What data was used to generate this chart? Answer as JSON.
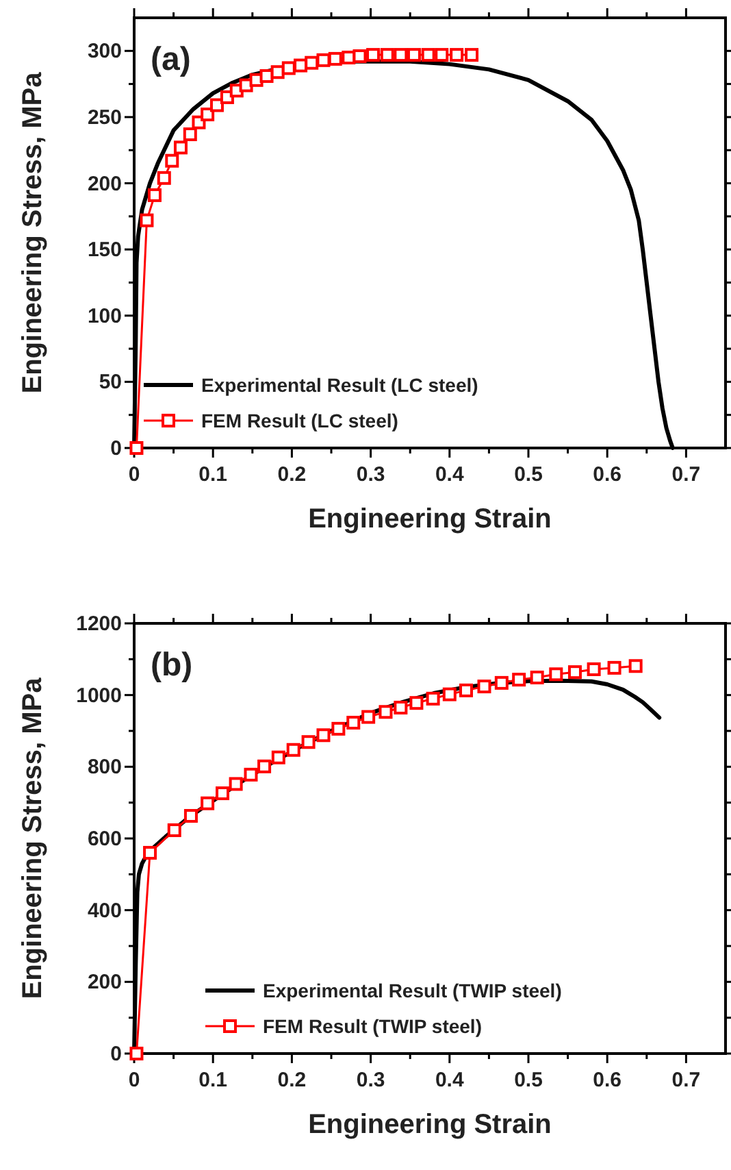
{
  "chart_data": [
    {
      "type": "line",
      "xlabel": "Engineering Strain",
      "ylabel": "Engineering Stress, MPa",
      "annotations": [
        "(a)"
      ],
      "legend": "bottom left",
      "xlim": [
        0,
        0.75
      ],
      "ylim": [
        0,
        325
      ],
      "xticks": [
        0,
        {
          "value": 0.05,
          "label": null
        },
        0.1,
        {
          "value": 0.15,
          "label": null
        },
        0.2,
        {
          "value": 0.25,
          "label": null
        },
        0.3,
        {
          "value": 0.35,
          "label": null
        },
        0.4,
        {
          "value": 0.45,
          "label": null
        },
        0.5,
        {
          "value": 0.55,
          "label": null
        },
        0.6,
        {
          "value": 0.65,
          "label": null
        },
        0.7
      ],
      "yticks": [
        0,
        {
          "value": 25,
          "label": null
        },
        50,
        {
          "value": 75,
          "label": null
        },
        100,
        {
          "value": 125,
          "label": null
        },
        150,
        {
          "value": 175,
          "label": null
        },
        200,
        {
          "value": 225,
          "label": null
        },
        250,
        {
          "value": 275,
          "label": null
        },
        300
      ],
      "series": [
        {
          "name": "Experimental Result (LC steel)",
          "color": "#000000",
          "marker": "none",
          "x": [
            0,
            0.002,
            0.003,
            0.005,
            0.01,
            0.02,
            0.03,
            0.05,
            0.075,
            0.1,
            0.125,
            0.15,
            0.2,
            0.25,
            0.3,
            0.35,
            0.4,
            0.45,
            0.5,
            0.55,
            0.58,
            0.6,
            0.62,
            0.63,
            0.64,
            0.645,
            0.65,
            0.655,
            0.66,
            0.665,
            0.67,
            0.675,
            0.68,
            0.683
          ],
          "values": [
            0,
            80,
            140,
            160,
            180,
            200,
            215,
            240,
            256,
            268,
            276,
            282,
            289,
            292,
            292,
            292,
            290,
            286,
            278,
            262,
            248,
            232,
            210,
            195,
            172,
            150,
            125,
            100,
            75,
            50,
            30,
            15,
            5,
            0
          ]
        },
        {
          "name": "FEM Result (LC steel)",
          "color": "#ff0000",
          "marker": "square",
          "x": [
            0.003,
            0.016,
            0.026,
            0.038,
            0.048,
            0.059,
            0.071,
            0.082,
            0.093,
            0.105,
            0.118,
            0.13,
            0.142,
            0.155,
            0.168,
            0.182,
            0.196,
            0.211,
            0.225,
            0.24,
            0.255,
            0.272,
            0.286,
            0.303,
            0.321,
            0.338,
            0.355,
            0.373,
            0.39,
            0.409,
            0.428
          ],
          "values": [
            0,
            172,
            191,
            204,
            217,
            227,
            237,
            246,
            252,
            259,
            265,
            270,
            274,
            278,
            281,
            284,
            287,
            289,
            291,
            293,
            294,
            295,
            296,
            297,
            297,
            297,
            297,
            297,
            297,
            297,
            297
          ]
        }
      ]
    },
    {
      "type": "line",
      "xlabel": "Engineering Strain",
      "ylabel": "Engineering Stress, MPa",
      "annotations": [
        "(b)"
      ],
      "legend": "bottom",
      "xlim": [
        0,
        0.75
      ],
      "ylim": [
        0,
        1200
      ],
      "xticks": [
        0,
        {
          "value": 0.05,
          "label": null
        },
        0.1,
        {
          "value": 0.15,
          "label": null
        },
        0.2,
        {
          "value": 0.25,
          "label": null
        },
        0.3,
        {
          "value": 0.35,
          "label": null
        },
        0.4,
        {
          "value": 0.45,
          "label": null
        },
        0.5,
        {
          "value": 0.55,
          "label": null
        },
        0.6,
        {
          "value": 0.65,
          "label": null
        },
        0.7
      ],
      "yticks": [
        0,
        {
          "value": 100,
          "label": null
        },
        200,
        {
          "value": 300,
          "label": null
        },
        400,
        {
          "value": 500,
          "label": null
        },
        600,
        {
          "value": 700,
          "label": null
        },
        800,
        {
          "value": 900,
          "label": null
        },
        1000,
        {
          "value": 1100,
          "label": null
        },
        1200
      ],
      "series": [
        {
          "name": "Experimental Result (TWIP steel)",
          "color": "#000000",
          "marker": "none",
          "x": [
            0,
            0.002,
            0.004,
            0.006,
            0.01,
            0.015,
            0.025,
            0.04,
            0.07,
            0.1,
            0.13,
            0.17,
            0.21,
            0.25,
            0.3,
            0.34,
            0.38,
            0.42,
            0.46,
            0.5,
            0.54,
            0.58,
            0.6,
            0.62,
            0.635,
            0.645,
            0.655,
            0.666
          ],
          "values": [
            0,
            250,
            450,
            500,
            530,
            550,
            575,
            605,
            660,
            705,
            750,
            805,
            855,
            900,
            950,
            980,
            1005,
            1022,
            1033,
            1039,
            1040,
            1038,
            1030,
            1015,
            995,
            980,
            960,
            937
          ]
        },
        {
          "name": "FEM Result (TWIP steel)",
          "color": "#ff0000",
          "marker": "square",
          "x": [
            0.003,
            0.02,
            0.051,
            0.072,
            0.093,
            0.112,
            0.129,
            0.148,
            0.165,
            0.183,
            0.202,
            0.221,
            0.24,
            0.259,
            0.278,
            0.297,
            0.319,
            0.338,
            0.358,
            0.379,
            0.4,
            0.421,
            0.444,
            0.466,
            0.488,
            0.511,
            0.535,
            0.559,
            0.583,
            0.609,
            0.636
          ],
          "values": [
            0,
            560,
            623,
            663,
            698,
            726,
            752,
            778,
            801,
            826,
            847,
            869,
            888,
            906,
            923,
            939,
            953,
            965,
            978,
            990,
            1002,
            1013,
            1024,
            1034,
            1043,
            1049,
            1058,
            1064,
            1072,
            1076,
            1081
          ]
        }
      ]
    }
  ]
}
